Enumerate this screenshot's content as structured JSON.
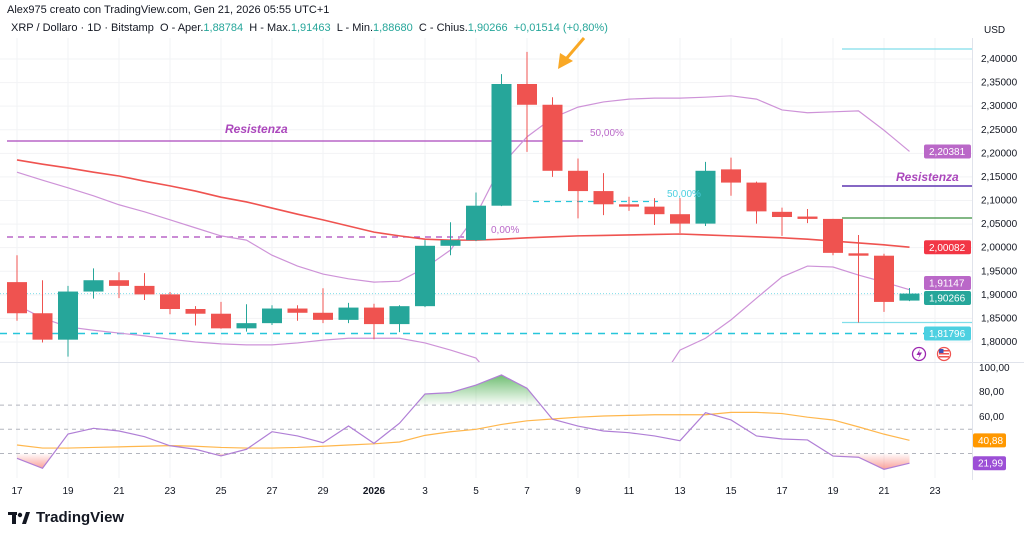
{
  "header": {
    "attribution": "Alex975 creato con TradingView.com, Gen 21, 2026 05:55 UTC+1",
    "symbol": "XRP / Dollaro · 1D · Bitstamp",
    "open_label": "O - Aper.",
    "open": "1,88784",
    "high_label": "H - Max.",
    "high": "1,91463",
    "low_label": "L - Min.",
    "low": "1,88680",
    "close_label": "C - Chius.",
    "close": "1,90266",
    "change": "+0,01514 (+0,80%)"
  },
  "price_axis": {
    "currency": "USD",
    "ticks": [
      "2,40000",
      "2,35000",
      "2,30000",
      "2,25000",
      "2,20000",
      "2,15000",
      "2,10000",
      "2,05000",
      "2,00000",
      "1,95000",
      "1,90000",
      "1,85000",
      "1,80000"
    ],
    "badges": [
      {
        "value": "2,20381",
        "color": "#ba68c8"
      },
      {
        "value": "2,00082",
        "color": "#f23645"
      },
      {
        "value": "1,91147",
        "color": "#ba68c8"
      },
      {
        "value": "1,90266",
        "color": "#26a69a"
      },
      {
        "value": "1,81796",
        "color": "#4dd0e1"
      }
    ]
  },
  "rsi_axis": {
    "ticks": [
      "100,00",
      "80,00",
      "60,00"
    ],
    "badges": [
      {
        "value": "40,88",
        "color": "#ff9800"
      },
      {
        "value": "21,99",
        "color": "#9c4fd6"
      }
    ]
  },
  "time_axis": [
    "17",
    "19",
    "21",
    "23",
    "25",
    "27",
    "29",
    "2026",
    "3",
    "5",
    "7",
    "9",
    "11",
    "13",
    "15",
    "17",
    "19",
    "21",
    "23"
  ],
  "annotations": {
    "resistance_left": "Resistenza",
    "resistance_right": "Resistenza",
    "fib_50_a": "50,00%",
    "fib_50_b": "50,00%",
    "fib_0": "0,00%"
  },
  "icons": [
    "lightning-event-icon",
    "us-flag-event-icon",
    "arrow-annotation-icon"
  ],
  "logo": "TradingView",
  "colors": {
    "up": "#26a69a",
    "down": "#ef5350",
    "ma": "#ef5350",
    "bands": "#ce93d8",
    "rsi": "#b07fd6",
    "rsi_ma": "#ffb74d"
  },
  "chart_data": {
    "type": "candlestick",
    "symbol": "XRP / Dollaro",
    "dates": [
      "Dec 17",
      "Dec 18",
      "Dec 19",
      "Dec 20",
      "Dec 21",
      "Dec 22",
      "Dec 23",
      "Dec 24",
      "Dec 25",
      "Dec 26",
      "Dec 27",
      "Dec 28",
      "Dec 29",
      "Dec 30",
      "Dec 31",
      "Jan 1",
      "Jan 2",
      "Jan 3",
      "Jan 4",
      "Jan 5",
      "Jan 6",
      "Jan 7",
      "Jan 8",
      "Jan 9",
      "Jan 10",
      "Jan 11",
      "Jan 12",
      "Jan 13",
      "Jan 14",
      "Jan 15",
      "Jan 16",
      "Jan 17",
      "Jan 18",
      "Jan 19",
      "Jan 20",
      "Jan 21"
    ],
    "ohlc": [
      [
        1.927,
        1.984,
        1.845,
        1.861
      ],
      [
        1.861,
        1.931,
        1.799,
        1.805
      ],
      [
        1.805,
        1.919,
        1.769,
        1.907
      ],
      [
        1.907,
        1.956,
        1.892,
        1.931
      ],
      [
        1.931,
        1.948,
        1.893,
        1.919
      ],
      [
        1.919,
        1.946,
        1.889,
        1.901
      ],
      [
        1.901,
        1.906,
        1.859,
        1.87
      ],
      [
        1.87,
        1.876,
        1.835,
        1.86
      ],
      [
        1.86,
        1.885,
        1.828,
        1.829
      ],
      [
        1.829,
        1.88,
        1.822,
        1.84
      ],
      [
        1.84,
        1.878,
        1.836,
        1.871
      ],
      [
        1.871,
        1.878,
        1.845,
        1.862
      ],
      [
        1.862,
        1.914,
        1.84,
        1.847
      ],
      [
        1.847,
        1.883,
        1.84,
        1.873
      ],
      [
        1.873,
        1.881,
        1.806,
        1.838
      ],
      [
        1.838,
        1.878,
        1.821,
        1.876
      ],
      [
        1.876,
        2.016,
        1.874,
        2.004
      ],
      [
        2.004,
        2.054,
        1.984,
        2.016
      ],
      [
        2.016,
        2.117,
        2.014,
        2.089
      ],
      [
        2.089,
        2.368,
        2.088,
        2.347
      ],
      [
        2.347,
        2.415,
        2.203,
        2.303
      ],
      [
        2.303,
        2.319,
        2.15,
        2.163
      ],
      [
        2.163,
        2.189,
        2.062,
        2.12
      ],
      [
        2.12,
        2.158,
        2.069,
        2.092
      ],
      [
        2.092,
        2.108,
        2.078,
        2.087
      ],
      [
        2.087,
        2.105,
        2.048,
        2.071
      ],
      [
        2.071,
        2.105,
        2.031,
        2.051
      ],
      [
        2.051,
        2.182,
        2.046,
        2.163
      ],
      [
        2.166,
        2.191,
        2.11,
        2.138
      ],
      [
        2.138,
        2.14,
        2.051,
        2.077
      ],
      [
        2.076,
        2.085,
        2.025,
        2.065
      ],
      [
        2.066,
        2.082,
        2.052,
        2.061
      ],
      [
        2.061,
        2.061,
        1.984,
        1.989
      ],
      [
        1.988,
        2.027,
        1.841,
        1.983
      ],
      [
        1.983,
        1.987,
        1.864,
        1.885
      ],
      [
        1.88784,
        1.91463,
        1.8868,
        1.90266
      ]
    ],
    "moving_average": [
      2.186,
      2.177,
      2.169,
      2.16,
      2.152,
      2.141,
      2.131,
      2.12,
      2.107,
      2.097,
      2.084,
      2.071,
      2.059,
      2.046,
      2.033,
      2.025,
      2.018,
      2.016,
      2.016,
      2.018,
      2.021,
      2.023,
      2.025,
      2.026,
      2.027,
      2.028,
      2.029,
      2.027,
      2.025,
      2.023,
      2.021,
      2.018,
      2.014,
      2.01,
      2.006,
      2.001
    ],
    "upper_band": [
      2.16,
      2.143,
      2.127,
      2.11,
      2.091,
      2.076,
      2.059,
      2.042,
      2.025,
      2.016,
      1.984,
      1.961,
      1.944,
      1.934,
      1.927,
      1.929,
      1.957,
      1.995,
      2.069,
      2.175,
      2.235,
      2.275,
      2.298,
      2.309,
      2.315,
      2.317,
      2.317,
      2.319,
      2.322,
      2.315,
      2.292,
      2.286,
      2.288,
      2.29,
      2.249,
      2.204
    ],
    "lower_band": [
      1.878,
      1.851,
      1.832,
      1.825,
      1.819,
      1.813,
      1.806,
      1.8,
      1.796,
      1.794,
      1.794,
      1.798,
      1.804,
      1.808,
      1.808,
      1.808,
      1.798,
      1.783,
      1.766,
      1.7,
      1.65,
      1.62,
      1.62,
      1.63,
      1.66,
      1.7,
      1.783,
      1.808,
      1.847,
      1.893,
      1.938,
      1.961,
      1.959,
      1.942,
      1.927,
      1.911
    ],
    "horizontal_levels": {
      "resistance": 2.23,
      "fib_0": 2.025,
      "fib_50": 2.095,
      "upper_resistance": 2.13,
      "green_level": 2.065,
      "support_dashed": 1.81796,
      "top_cyan": 2.42,
      "lower_cyan": 1.84,
      "last_price": 1.90266
    },
    "y_range": [
      1.78,
      2.44
    ],
    "rsi": {
      "values": [
        26.0,
        17.8,
        46.1,
        50.8,
        48.6,
        43.9,
        36.4,
        33.5,
        28.0,
        33.5,
        48.0,
        44.5,
        38.9,
        52.7,
        38.4,
        55.0,
        79.2,
        80.3,
        86.6,
        94.9,
        83.9,
        58.3,
        52.7,
        48.6,
        47.2,
        44.5,
        40.6,
        63.7,
        57.7,
        44.5,
        42.0,
        41.2,
        27.9,
        26.9,
        16.9,
        21.99
      ],
      "ma": [
        37,
        34.5,
        34.5,
        35,
        35.5,
        36,
        36.5,
        36,
        35,
        34.5,
        34.5,
        35,
        36,
        37,
        38,
        39.5,
        45,
        48,
        50,
        54,
        57,
        58.5,
        60,
        61,
        61.5,
        62,
        62,
        62,
        64,
        64,
        63,
        60,
        57.7,
        52,
        46,
        40.88
      ],
      "levels": [
        70,
        50,
        30
      ],
      "y_range": [
        0,
        100
      ]
    }
  }
}
